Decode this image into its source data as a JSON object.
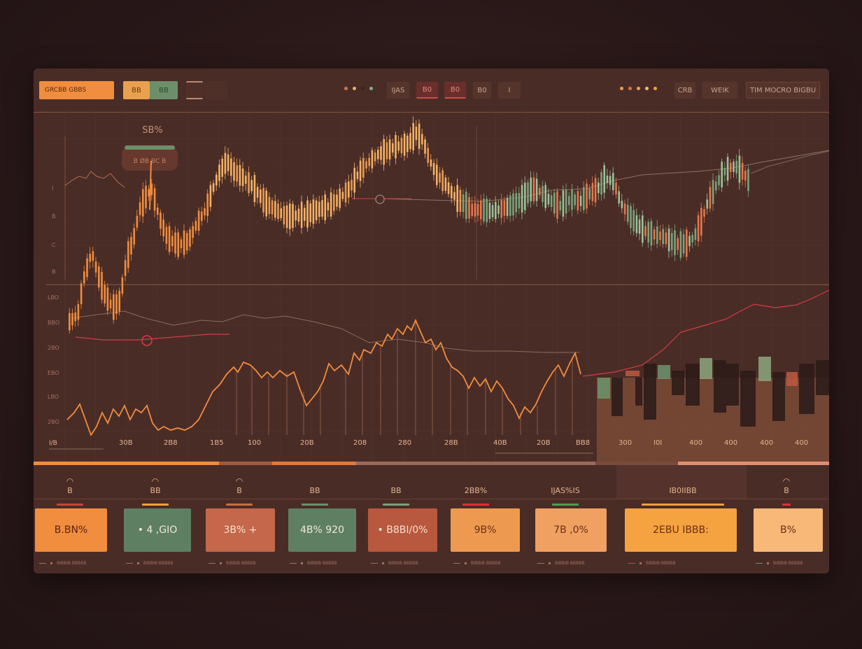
{
  "toolbar": {
    "brand_label": "GRCBB GBBS",
    "segment_left_a": "BB",
    "segment_left_b": "BB",
    "mid_btn_1": "IJAS",
    "mid_btn_2": "B0",
    "mid_btn_3": "B0",
    "mid_btn_4": "B0",
    "mid_btn_5": "I",
    "right_btn_1": "CRB",
    "right_btn_2": "WEIK",
    "right_btn_3": "TIM MOCRO BIGBU",
    "dot_colors_left": [
      "#d8734a",
      "#e6b060",
      "#3a2420",
      "#7fae88"
    ],
    "dot_colors_right": [
      "#e0a050",
      "#d8734a",
      "#e6a060",
      "#e8c070",
      "#f0a040"
    ]
  },
  "chart": {
    "callout_value": "SB%",
    "callout_badge": "B ØB BC B",
    "y_ticks_upper": [
      "I",
      "B",
      "C",
      "B"
    ],
    "y_ticks_lower": [
      "LBO",
      "BBO",
      "2BO",
      "EBO",
      "LBO",
      "2BO"
    ],
    "x_ticks": [
      "I/B",
      "30B",
      "2B8",
      "1B5",
      "100",
      "20B",
      "208",
      "280",
      "28B",
      "40B",
      "20B",
      "BB8",
      "300",
      "I0I",
      "400",
      "400",
      "400",
      "400"
    ]
  },
  "stats": [
    {
      "value": "B",
      "bar_color": "#c4463a"
    },
    {
      "value": "BB",
      "bar_color": "#f0a040"
    },
    {
      "value": "B",
      "bar_color": "#c47040"
    },
    {
      "value": "BB",
      "bar_color": "#6c8f6a"
    },
    {
      "value": "BB",
      "bar_color": "#7aa37a"
    },
    {
      "value": "2BB%",
      "bar_color": "#e0303a"
    },
    {
      "value": "IJAS%IS",
      "bar_color": "#4aa050"
    },
    {
      "value": "IB0IIBB",
      "bar_color": "#f0a040"
    },
    {
      "value": "B",
      "bar_color": "#e0303a"
    }
  ],
  "tiles": [
    {
      "value": "B.BN%",
      "bg": "#f08d3e",
      "fg": "#5a2410"
    },
    {
      "value": "• 4 ,GIO",
      "bg": "#5f7f62",
      "fg": "#f0e8d8"
    },
    {
      "value": "3B% +",
      "bg": "#c4674a",
      "fg": "#f8e0d0"
    },
    {
      "value": "4B% 920",
      "bg": "#5f7f62",
      "fg": "#f0e8d8"
    },
    {
      "value": "• B8BI/0%",
      "bg": "#b8583e",
      "fg": "#f8e0d0"
    },
    {
      "value": "9B%",
      "bg": "#ed9a50",
      "fg": "#6a3014"
    },
    {
      "value": "7B ,0%",
      "bg": "#f0a060",
      "fg": "#6a3014"
    },
    {
      "value": "2EBU IBBB:",
      "bg": "#f5a240",
      "fg": "#6a3014"
    },
    {
      "value": "B%",
      "bg": "#f7b878",
      "fg": "#6a3014"
    }
  ],
  "footer_labels": [
    "BIBBIB BBBBB",
    "BIBBIB BBBBB",
    "BIBBIB BBBBB",
    "BIBBIB BBBBB",
    "BIBBIB BBBBB",
    "BIBBIB BBBBB",
    "BIBBIB BBBBB",
    "BIBBIB BBBBB",
    "BIBBIB BBBBB"
  ]
}
